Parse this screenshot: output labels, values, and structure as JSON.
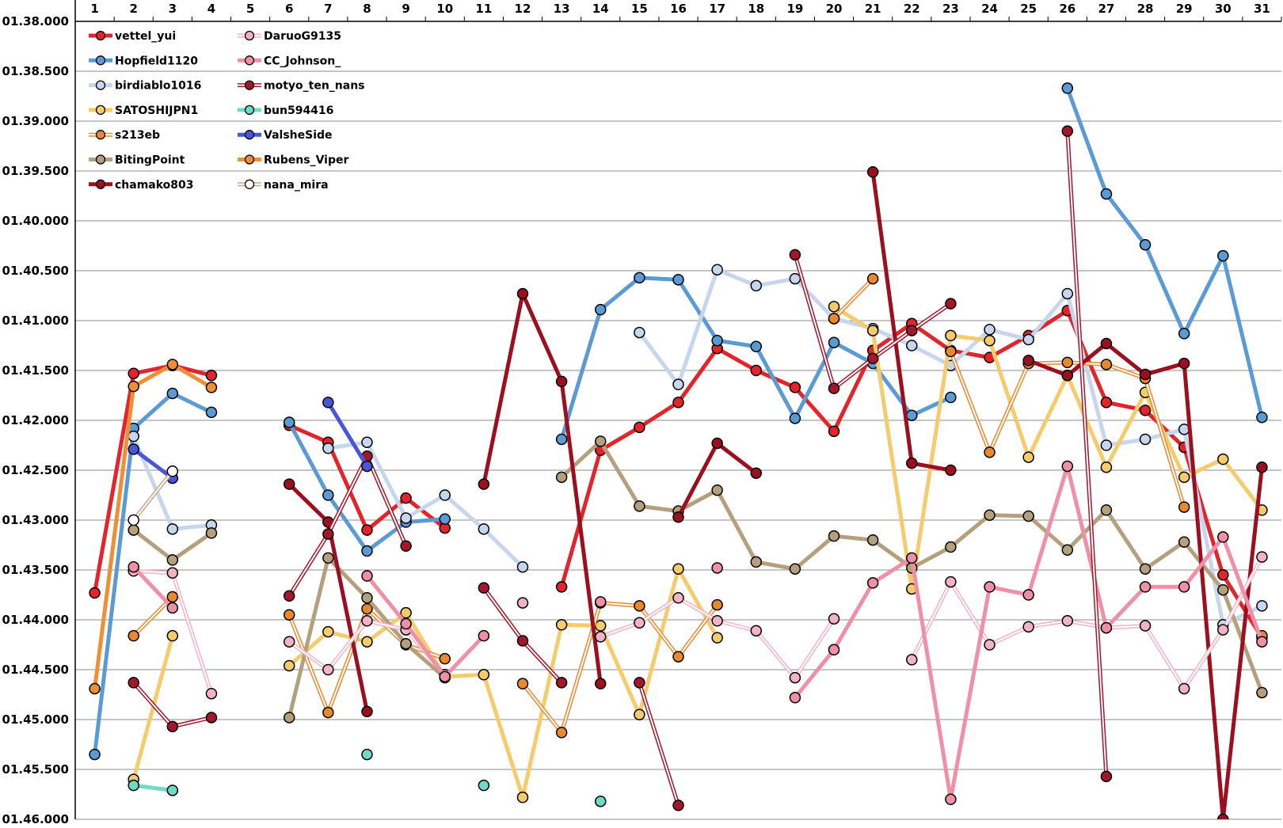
{
  "chart_data": {
    "type": "line",
    "title": "",
    "xlabel": "",
    "ylabel": "",
    "x": [
      1,
      2,
      3,
      4,
      5,
      6,
      7,
      8,
      9,
      10,
      11,
      12,
      13,
      14,
      15,
      16,
      17,
      18,
      19,
      20,
      21,
      22,
      23,
      24,
      25,
      26,
      27,
      28,
      29,
      30,
      31
    ],
    "x_tick_labels": [
      "1",
      "2",
      "3",
      "4",
      "5",
      "6",
      "7",
      "8",
      "9",
      "10",
      "11",
      "12",
      "13",
      "14",
      "15",
      "16",
      "17",
      "18",
      "19",
      "20",
      "21",
      "22",
      "23",
      "24",
      "25",
      "26",
      "27",
      "28",
      "29",
      "30",
      "31"
    ],
    "y_axis": {
      "range_seconds": [
        98,
        106
      ],
      "inverted": true,
      "note_units": "lap time in seconds; labels shown as mm.ss.sss"
    },
    "y_tick_labels": [
      "01.38.000",
      "01.38.500",
      "01.39.000",
      "01.39.500",
      "01.40.000",
      "01.40.500",
      "01.41.000",
      "01.41.500",
      "01.42.000",
      "01.42.500",
      "01.43.000",
      "01.43.500",
      "01.44.000",
      "01.44.500",
      "01.45.000",
      "01.45.500",
      "01.46.000"
    ],
    "y_tick_values": [
      98,
      98.5,
      99,
      99.5,
      100,
      100.5,
      101,
      101.5,
      102,
      102.5,
      103,
      103.5,
      104,
      104.5,
      105,
      105.5,
      106
    ],
    "grid": "horizontal",
    "legend_position": "top-left",
    "series": [
      {
        "name": "vettel_yui",
        "style": "solid",
        "color": "#e3242b",
        "values": [
          103.73,
          101.53,
          101.45,
          101.55,
          null,
          102.05,
          102.22,
          103.1,
          102.78,
          103.08,
          null,
          null,
          103.67,
          102.3,
          102.07,
          101.82,
          101.28,
          101.5,
          101.67,
          102.11,
          101.3,
          101.03,
          101.3,
          101.37,
          101.15,
          100.9,
          101.82,
          101.9,
          102.27,
          103.55,
          104.18
        ]
      },
      {
        "name": "Hopfield1120",
        "style": "solid",
        "color": "#5b9bd5",
        "values": [
          105.35,
          102.08,
          101.73,
          101.92,
          null,
          102.02,
          102.75,
          103.31,
          103.02,
          102.99,
          null,
          null,
          102.19,
          100.89,
          100.57,
          100.59,
          101.2,
          101.26,
          101.98,
          101.22,
          101.43,
          101.95,
          101.77,
          null,
          null,
          98.67,
          99.73,
          100.24,
          101.13,
          100.35,
          101.97
        ]
      },
      {
        "name": "birdiablo1016",
        "style": "solid",
        "color": "#c6d6ec",
        "values": [
          null,
          102.16,
          103.09,
          103.05,
          null,
          null,
          102.28,
          102.22,
          102.98,
          102.75,
          103.09,
          103.47,
          null,
          null,
          101.12,
          101.64,
          100.49,
          100.65,
          100.58,
          100.98,
          101.08,
          101.25,
          101.45,
          101.09,
          101.19,
          100.73,
          102.25,
          102.19,
          102.09,
          104.05,
          103.86
        ]
      },
      {
        "name": "SATOSHIJPN1",
        "style": "solid",
        "color": "#f5cc6b",
        "values": [
          null,
          105.6,
          104.16,
          null,
          null,
          104.46,
          104.12,
          104.22,
          103.93,
          104.57,
          104.55,
          105.78,
          104.05,
          104.06,
          104.95,
          103.49,
          104.18,
          null,
          null,
          100.86,
          101.1,
          103.69,
          101.15,
          101.2,
          102.37,
          101.55,
          102.47,
          101.72,
          102.57,
          102.39,
          102.9
        ]
      },
      {
        "name": "s213eb",
        "style": "double",
        "color": "#e9892f",
        "values": [
          null,
          104.16,
          103.77,
          null,
          null,
          103.95,
          104.93,
          103.89,
          104.25,
          104.39,
          null,
          104.64,
          105.13,
          103.83,
          103.86,
          104.37,
          103.85,
          null,
          null,
          100.98,
          100.58,
          null,
          101.31,
          102.32,
          101.43,
          101.42,
          101.44,
          101.58,
          102.87,
          null,
          104.16
        ]
      },
      {
        "name": "BitingPoint",
        "style": "solid",
        "color": "#b5a07e",
        "values": [
          null,
          103.1,
          103.4,
          103.13,
          null,
          104.98,
          103.38,
          103.78,
          104.24,
          104.58,
          null,
          null,
          102.57,
          102.21,
          102.86,
          102.91,
          102.7,
          103.42,
          103.49,
          103.16,
          103.2,
          103.48,
          103.27,
          102.95,
          102.96,
          103.3,
          102.9,
          103.49,
          103.22,
          103.7,
          104.73
        ]
      },
      {
        "name": "chamako803",
        "style": "solid",
        "color": "#9b1020",
        "values": [
          null,
          null,
          null,
          null,
          null,
          102.64,
          103.02,
          104.92,
          null,
          null,
          102.64,
          100.73,
          101.61,
          104.64,
          null,
          102.97,
          102.23,
          102.53,
          null,
          null,
          99.51,
          102.43,
          102.5,
          null,
          101.4,
          101.55,
          101.23,
          101.54,
          101.43,
          106.0,
          102.47
        ]
      },
      {
        "name": "DaruoG9135",
        "style": "double",
        "color": "#f2b3c6",
        "values": [
          null,
          103.51,
          103.53,
          104.74,
          null,
          104.22,
          104.5,
          104.01,
          104.1,
          104.55,
          null,
          103.83,
          null,
          104.17,
          104.03,
          103.78,
          104.01,
          104.11,
          104.58,
          103.99,
          null,
          104.4,
          103.62,
          104.25,
          104.07,
          104.01,
          104.08,
          104.06,
          104.69,
          104.1,
          103.37
        ]
      },
      {
        "name": "CC_Johnson_",
        "style": "solid",
        "color": "#ef8fa8",
        "values": [
          null,
          103.47,
          103.88,
          null,
          null,
          null,
          null,
          103.56,
          104.04,
          104.57,
          104.16,
          null,
          null,
          103.82,
          null,
          null,
          103.48,
          null,
          104.78,
          104.3,
          103.63,
          103.38,
          105.8,
          103.67,
          103.75,
          102.46,
          104.08,
          103.67,
          103.67,
          103.17,
          104.22
        ]
      },
      {
        "name": "motyo_ten_nans",
        "style": "double",
        "color": "#a3172d",
        "values": [
          null,
          104.63,
          105.07,
          104.98,
          null,
          103.76,
          103.14,
          102.36,
          103.26,
          null,
          103.68,
          104.21,
          104.63,
          null,
          104.63,
          105.86,
          null,
          null,
          100.34,
          101.68,
          101.38,
          101.1,
          100.83,
          null,
          null,
          99.1,
          105.57,
          null,
          null,
          null,
          null
        ]
      },
      {
        "name": "bun594416",
        "style": "solid",
        "color": "#6fdac6",
        "values": [
          null,
          105.66,
          105.71,
          null,
          null,
          null,
          null,
          105.35,
          null,
          null,
          105.66,
          null,
          null,
          105.82,
          null,
          null,
          null,
          null,
          null,
          null,
          null,
          null,
          null,
          null,
          null,
          null,
          null,
          null,
          null,
          null,
          null
        ]
      },
      {
        "name": "ValsheSide",
        "style": "solid",
        "color": "#4a56d9",
        "values": [
          null,
          102.29,
          102.58,
          null,
          null,
          null,
          101.82,
          102.46,
          null,
          null,
          null,
          null,
          null,
          null,
          null,
          null,
          null,
          null,
          null,
          null,
          null,
          null,
          null,
          null,
          null,
          null,
          null,
          null,
          null,
          null,
          null
        ]
      },
      {
        "name": "Rubens_Viper",
        "style": "solid",
        "color": "#ee8f36",
        "values": [
          104.69,
          101.66,
          101.44,
          101.67,
          null,
          null,
          null,
          null,
          null,
          null,
          null,
          null,
          null,
          null,
          null,
          null,
          null,
          null,
          null,
          null,
          null,
          null,
          null,
          null,
          null,
          null,
          null,
          null,
          null,
          null,
          null
        ]
      },
      {
        "name": "nana_mira",
        "style": "double",
        "color": "#c2a98a",
        "values": [
          null,
          103.0,
          102.51,
          null,
          null,
          null,
          null,
          null,
          null,
          null,
          null,
          null,
          null,
          null,
          null,
          null,
          null,
          null,
          null,
          null,
          null,
          null,
          null,
          null,
          null,
          null,
          null,
          null,
          null,
          null,
          null
        ]
      }
    ]
  }
}
